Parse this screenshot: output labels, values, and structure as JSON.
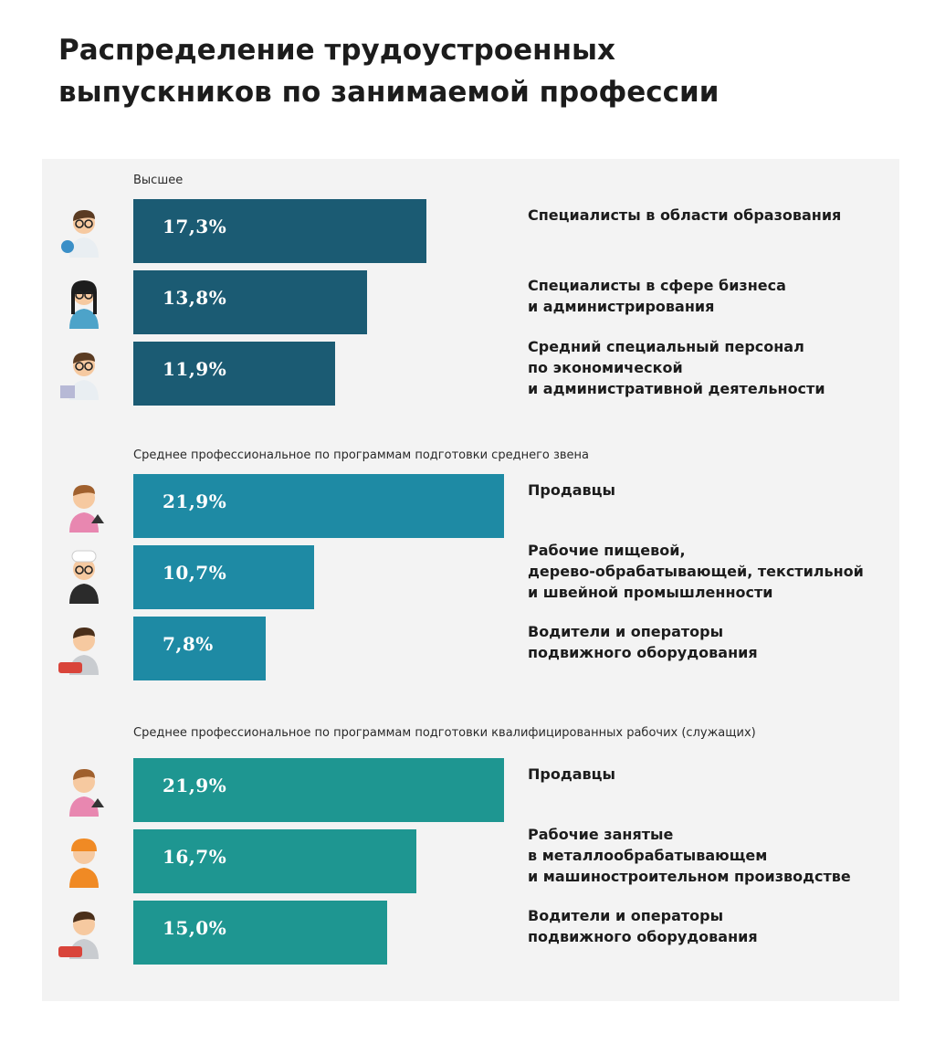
{
  "title_lines": [
    "Распределение трудоустроенных",
    "выпускников по занимаемой профессии"
  ],
  "colors": {
    "group_1": "#1b5b73",
    "group_2": "#1e8aa4",
    "group_3": "#1e9691"
  },
  "chart_data": [
    {
      "type": "bar",
      "orientation": "horizontal",
      "subtitle": "Высшее",
      "categories": [
        "Специалисты в области образования",
        "Специалисты в сфере бизнеса и администрирования",
        "Средний специальный персонал по экономической и административной деятельности"
      ],
      "category_lines": [
        [
          "Специалисты в области образования"
        ],
        [
          "Специалисты в сфере бизнеса",
          "и администрирования"
        ],
        [
          "Средний специальный персонал",
          "по экономической",
          "и административной деятельности"
        ]
      ],
      "values": [
        17.3,
        13.8,
        11.9
      ],
      "value_labels": [
        "17,3%",
        "13,8%",
        "11,9%"
      ],
      "icons": [
        "teacher-icon",
        "business-woman-icon",
        "accountant-icon"
      ],
      "unit": "%"
    },
    {
      "type": "bar",
      "orientation": "horizontal",
      "subtitle": "Среднее профессиональное по программам подготовки среднего звена",
      "categories": [
        "Продавцы",
        "Рабочие пищевой, дерево-обрабатывающей, текстильной и швейной промышленности",
        "Водители и операторы подвижного оборудования"
      ],
      "category_lines": [
        [
          "Продавцы"
        ],
        [
          "Рабочие  пищевой,",
          "дерево-обрабатывающей, текстильной",
          "и швейной промышленности"
        ],
        [
          "Водители и операторы",
          "подвижного оборудования"
        ]
      ],
      "values": [
        21.9,
        10.7,
        7.8
      ],
      "value_labels": [
        "21,9%",
        "10,7%",
        "7,8%"
      ],
      "icons": [
        "seller-icon",
        "cook-icon",
        "driver-icon"
      ],
      "unit": "%"
    },
    {
      "type": "bar",
      "orientation": "horizontal",
      "subtitle": "Среднее профессиональное по программам подготовки квалифицированных рабочих (служащих)",
      "categories": [
        "Продавцы",
        "Рабочие занятые в металлообрабатывающем и машиностроительном производстве",
        "Водители и операторы подвижного оборудования"
      ],
      "category_lines": [
        [
          "Продавцы"
        ],
        [
          "Рабочие занятые",
          "в металлообрабатывающем",
          "и машиностроительном производстве"
        ],
        [
          "Водители и операторы",
          "подвижного оборудования"
        ]
      ],
      "values": [
        21.9,
        16.7,
        15.0
      ],
      "value_labels": [
        "21,9%",
        "16,7%",
        "15,0%"
      ],
      "icons": [
        "seller-icon",
        "builder-icon",
        "driver-icon"
      ],
      "unit": "%"
    }
  ]
}
